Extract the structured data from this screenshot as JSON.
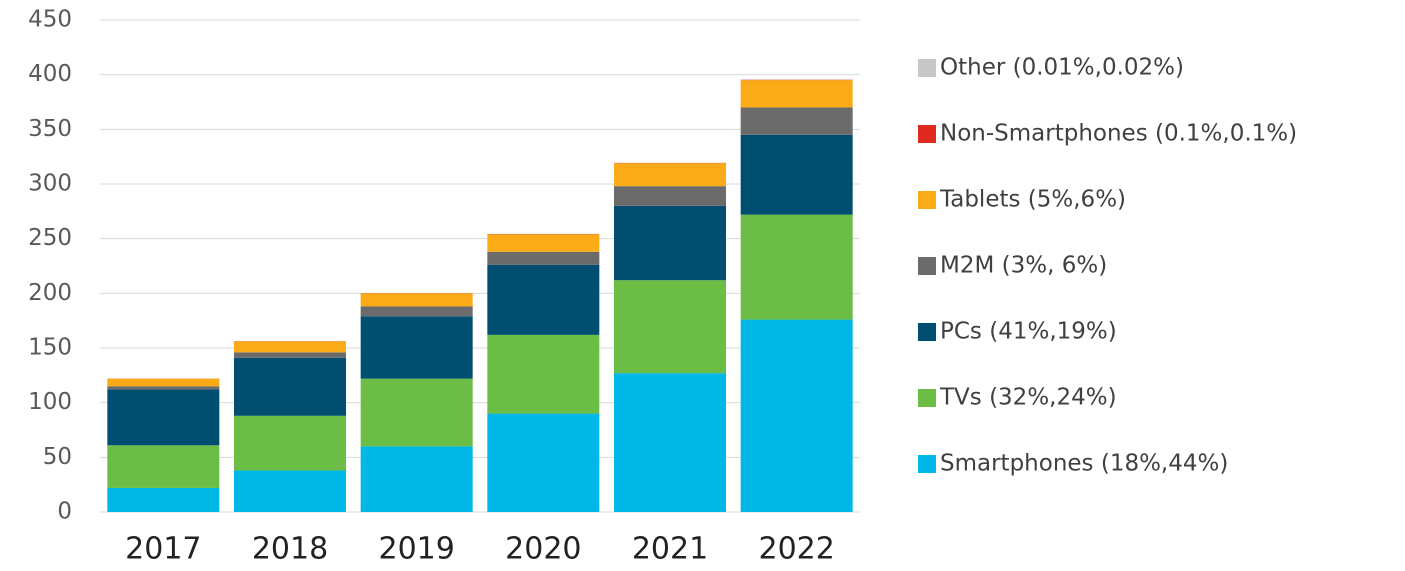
{
  "chart_data": {
    "type": "stacked_bar",
    "categories": [
      "2017",
      "2018",
      "2019",
      "2020",
      "2021",
      "2022"
    ],
    "series": [
      {
        "name": "Smartphones (18%,44%)",
        "color": "#00b8e6",
        "values": [
          22,
          38,
          60,
          90,
          127,
          176
        ]
      },
      {
        "name": "TVs (32%,24%)",
        "color": "#6cbd45",
        "values": [
          39,
          50,
          62,
          72,
          85,
          96
        ]
      },
      {
        "name": "PCs (41%,19%)",
        "color": "#004f71",
        "values": [
          51,
          53,
          57,
          64,
          68,
          73
        ]
      },
      {
        "name": "M2M (3%, 6%)",
        "color": "#6b6b6b",
        "values": [
          3,
          5,
          9,
          12,
          18,
          25
        ]
      },
      {
        "name": "Tablets (5%,6%)",
        "color": "#fbab18",
        "values": [
          7,
          10,
          12,
          16,
          21,
          25
        ]
      },
      {
        "name": "Non-Smartphones (0.1%,0.1%)",
        "color": "#e02a20",
        "values": [
          0.1,
          0.2,
          0.2,
          0.3,
          0.3,
          0.4
        ]
      },
      {
        "name": "Other (0.01%,0.02%)",
        "color": "#c8c8c8",
        "values": [
          0.01,
          0.02,
          0.02,
          0.03,
          0.05,
          0.08
        ]
      }
    ],
    "ylim": [
      0,
      450
    ],
    "yticks": [
      0,
      50,
      100,
      150,
      200,
      250,
      300,
      350,
      400,
      450
    ],
    "grid": true
  }
}
